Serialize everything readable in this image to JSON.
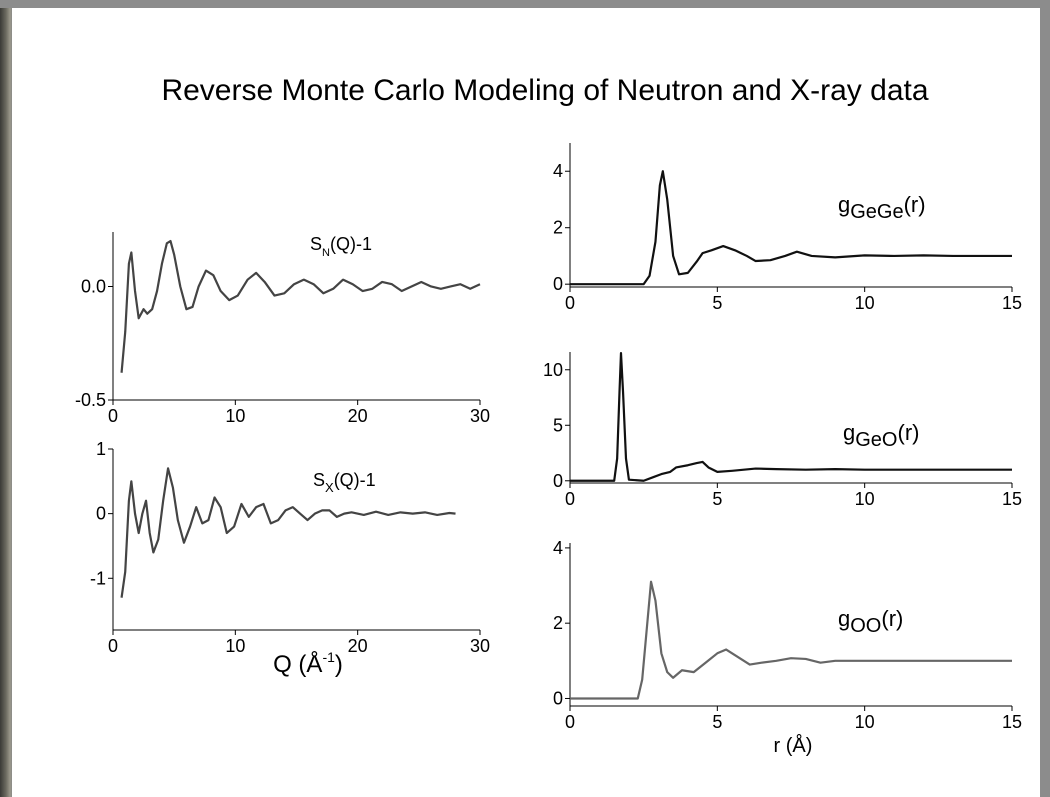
{
  "title": "Reverse Monte Carlo Modeling of Neutron and X-ray data",
  "chart_data": [
    {
      "type": "line",
      "annotation": {
        "text": "S",
        "sub": "N",
        "rest": "(Q)-1"
      },
      "xlim": [
        0,
        30
      ],
      "ylim": [
        -0.5,
        0.24
      ],
      "xticks": [
        0,
        10,
        20,
        30
      ],
      "yticks": [
        -0.5,
        {
          "value": 0,
          "label": "0.0"
        }
      ],
      "x": [
        0.7,
        1.0,
        1.3,
        1.5,
        1.8,
        2.1,
        2.5,
        2.8,
        3.2,
        3.6,
        4.0,
        4.4,
        4.7,
        5.0,
        5.5,
        6.0,
        6.5,
        7.0,
        7.6,
        8.2,
        8.8,
        9.5,
        10.2,
        11.0,
        11.7,
        12.4,
        13.2,
        14.0,
        14.8,
        15.6,
        16.4,
        17.2,
        18.0,
        18.8,
        19.6,
        20.4,
        21.2,
        22.0,
        22.8,
        23.6,
        24.4,
        25.2,
        26.0,
        26.8,
        27.6,
        28.4,
        29.2,
        30.0
      ],
      "series": [
        {
          "color": "#444444",
          "values": [
            -0.38,
            -0.2,
            0.1,
            0.15,
            -0.02,
            -0.14,
            -0.1,
            -0.12,
            -0.1,
            -0.02,
            0.1,
            0.19,
            0.2,
            0.14,
            0.0,
            -0.1,
            -0.09,
            0.0,
            0.07,
            0.05,
            -0.02,
            -0.06,
            -0.04,
            0.03,
            0.06,
            0.02,
            -0.04,
            -0.03,
            0.01,
            0.03,
            0.01,
            -0.03,
            -0.01,
            0.03,
            0.01,
            -0.02,
            -0.01,
            0.02,
            0.01,
            -0.02,
            0.0,
            0.02,
            0.0,
            -0.01,
            0.0,
            0.01,
            -0.01,
            0.01
          ]
        }
      ]
    },
    {
      "type": "line",
      "annotation": {
        "text": "S",
        "sub": "X",
        "rest": "(Q)-1"
      },
      "x_label": {
        "text": "Q (Å",
        "sup": "-1",
        "rest": ")"
      },
      "xlim": [
        0,
        30
      ],
      "ylim": [
        -1.8,
        1
      ],
      "xticks": [
        0,
        10,
        20,
        30
      ],
      "yticks": [
        -1,
        0,
        1
      ],
      "x": [
        0.7,
        1.0,
        1.3,
        1.5,
        1.8,
        2.1,
        2.4,
        2.7,
        3.0,
        3.3,
        3.7,
        4.1,
        4.5,
        4.9,
        5.3,
        5.8,
        6.3,
        6.8,
        7.3,
        7.8,
        8.3,
        8.8,
        9.3,
        9.9,
        10.5,
        11.1,
        11.7,
        12.3,
        12.9,
        13.5,
        14.1,
        14.7,
        15.3,
        15.9,
        16.5,
        17.1,
        17.7,
        18.3,
        18.9,
        19.5,
        20.5,
        21.5,
        22.5,
        23.5,
        24.5,
        25.5,
        26.5,
        27.5,
        28.0
      ],
      "series": [
        {
          "color": "#444444",
          "values": [
            -1.3,
            -0.9,
            0.2,
            0.5,
            0.0,
            -0.3,
            0.0,
            0.2,
            -0.3,
            -0.6,
            -0.4,
            0.2,
            0.7,
            0.4,
            -0.1,
            -0.45,
            -0.2,
            0.1,
            -0.15,
            -0.1,
            0.25,
            0.1,
            -0.3,
            -0.2,
            0.15,
            -0.05,
            0.1,
            0.15,
            -0.15,
            -0.1,
            0.05,
            0.1,
            0.0,
            -0.1,
            0.0,
            0.05,
            0.05,
            -0.05,
            0.0,
            0.02,
            -0.02,
            0.03,
            -0.02,
            0.02,
            0.0,
            0.02,
            -0.02,
            0.01,
            0.0
          ]
        }
      ]
    },
    {
      "type": "line",
      "annotation": {
        "text": "g",
        "sub": "GeGe",
        "rest": "(r)"
      },
      "xlim": [
        0,
        15
      ],
      "ylim": [
        -0.1,
        5
      ],
      "xticks": [
        0,
        5,
        10,
        15
      ],
      "yticks": [
        0,
        2,
        4
      ],
      "x": [
        0,
        2.5,
        2.7,
        2.9,
        3.05,
        3.15,
        3.3,
        3.5,
        3.7,
        4.0,
        4.3,
        4.5,
        4.8,
        5.2,
        5.6,
        6.0,
        6.3,
        6.8,
        7.3,
        7.7,
        8.2,
        9,
        10,
        11,
        12,
        13,
        14,
        15
      ],
      "series": [
        {
          "color": "#111111",
          "values": [
            0,
            0,
            0.3,
            1.5,
            3.5,
            4.0,
            3.0,
            1.0,
            0.35,
            0.4,
            0.8,
            1.1,
            1.2,
            1.35,
            1.2,
            1.0,
            0.82,
            0.85,
            1.0,
            1.15,
            1.0,
            0.95,
            1.02,
            1.0,
            1.02,
            1.0,
            1.0,
            1.0
          ]
        }
      ]
    },
    {
      "type": "line",
      "annotation": {
        "text": "g",
        "sub": "GeO",
        "rest": "(r)"
      },
      "xlim": [
        0,
        15
      ],
      "ylim": [
        -0.2,
        11.6
      ],
      "xticks": [
        0,
        5,
        10,
        15
      ],
      "yticks": [
        0,
        5,
        10
      ],
      "x": [
        0,
        1.5,
        1.6,
        1.68,
        1.73,
        1.8,
        1.9,
        2.0,
        2.5,
        2.8,
        3.1,
        3.4,
        3.6,
        4.0,
        4.3,
        4.5,
        4.7,
        5.0,
        5.5,
        6.3,
        7,
        8,
        9,
        10,
        12,
        15
      ],
      "series": [
        {
          "color": "#111111",
          "values": [
            0,
            0,
            2,
            8,
            11.5,
            8,
            2,
            0.1,
            0,
            0.3,
            0.6,
            0.8,
            1.2,
            1.4,
            1.6,
            1.7,
            1.2,
            0.8,
            0.9,
            1.1,
            1.05,
            1.0,
            1.05,
            1.0,
            1.0,
            1.0
          ]
        }
      ]
    },
    {
      "type": "line",
      "annotation": {
        "text": "g",
        "sub": "OO",
        "rest": "(r)"
      },
      "x_label": "r (Å)",
      "xlim": [
        0,
        15
      ],
      "ylim": [
        -0.2,
        4.13
      ],
      "xticks": [
        0,
        5,
        10,
        15
      ],
      "yticks": [
        0,
        2,
        4
      ],
      "x": [
        0,
        2.3,
        2.45,
        2.6,
        2.75,
        2.9,
        3.1,
        3.3,
        3.5,
        3.8,
        4.2,
        4.6,
        5.0,
        5.3,
        5.7,
        6.1,
        6.5,
        7.0,
        7.5,
        8.0,
        8.5,
        9,
        10,
        12,
        15
      ],
      "series": [
        {
          "color": "#666666",
          "values": [
            0,
            0,
            0.5,
            1.8,
            3.1,
            2.6,
            1.2,
            0.7,
            0.55,
            0.75,
            0.7,
            0.95,
            1.2,
            1.3,
            1.1,
            0.9,
            0.95,
            1.0,
            1.07,
            1.05,
            0.95,
            1.0,
            1.0,
            1.0,
            1.0
          ]
        }
      ]
    }
  ]
}
